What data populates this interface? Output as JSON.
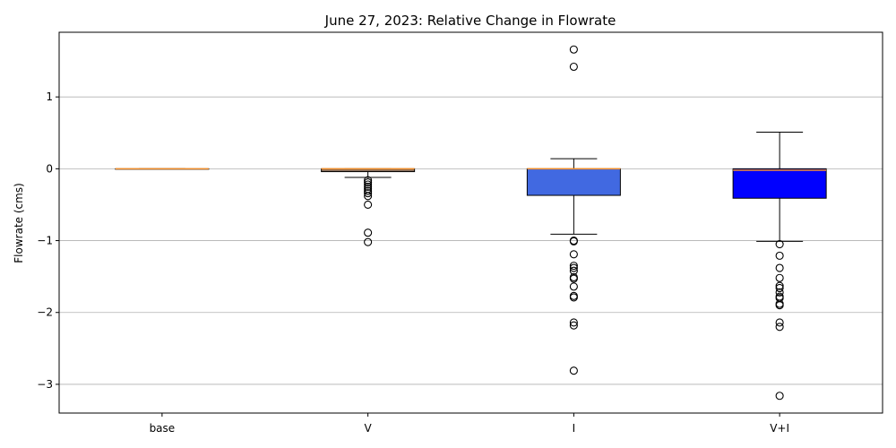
{
  "chart_data": {
    "type": "box",
    "title": "June 27, 2023: Relative Change in Flowrate",
    "xlabel": "",
    "ylabel": "Flowrate (cms)",
    "ylim": [
      -3.4,
      1.9
    ],
    "yticks": [
      -3,
      -2,
      -1,
      0,
      1
    ],
    "ytick_labels": [
      "−3",
      "−2",
      "−1",
      "0",
      "1"
    ],
    "grid": "horizontal",
    "categories": [
      "base",
      "V",
      "I",
      "V+I"
    ],
    "box_colors": [
      "#ffffff",
      "#8b6f5a",
      "#4169e1",
      "#0000ff"
    ],
    "median_color": "#f28e2b",
    "boxes": [
      {
        "label": "base",
        "q1": 0.0,
        "median": 0.0,
        "q3": 0.0,
        "whisker_low": 0.0,
        "whisker_high": 0.0,
        "outliers": []
      },
      {
        "label": "V",
        "q1": -0.04,
        "median": 0.0,
        "q3": 0.0,
        "whisker_low": -0.12,
        "whisker_high": 0.0,
        "outliers": [
          -0.16,
          -0.19,
          -0.22,
          -0.25,
          -0.28,
          -0.31,
          -0.34,
          -0.38,
          -0.5,
          -0.89,
          -1.02
        ]
      },
      {
        "label": "I",
        "q1": -0.37,
        "median": 0.0,
        "q3": 0.0,
        "whisker_low": -0.91,
        "whisker_high": 0.14,
        "outliers": [
          1.66,
          1.42,
          -1.0,
          -1.01,
          -1.19,
          -1.35,
          -1.38,
          -1.42,
          -1.51,
          -1.53,
          -1.64,
          -1.77,
          -1.79,
          -2.14,
          -2.18,
          -2.81
        ]
      },
      {
        "label": "V+I",
        "q1": -0.41,
        "median": -0.02,
        "q3": 0.0,
        "whisker_low": -1.01,
        "whisker_high": 0.51,
        "outliers": [
          -1.05,
          -1.21,
          -1.38,
          -1.52,
          -1.63,
          -1.66,
          -1.72,
          -1.78,
          -1.8,
          -1.88,
          -1.9,
          -2.14,
          -2.2,
          -3.16
        ]
      }
    ]
  }
}
